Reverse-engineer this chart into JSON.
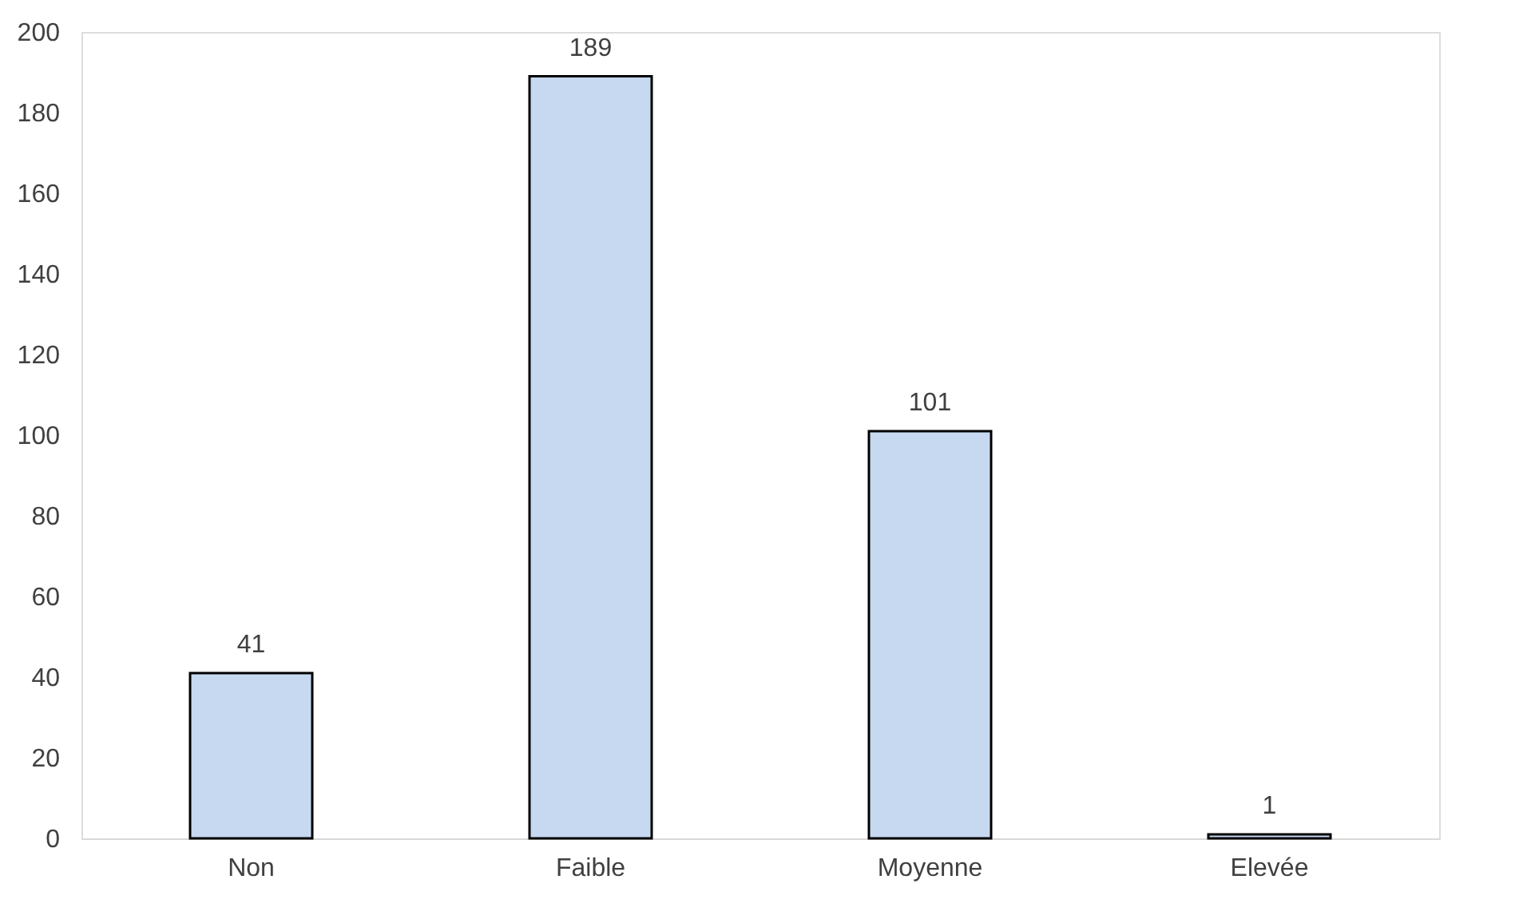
{
  "chart_data": {
    "type": "bar",
    "categories": [
      "Non",
      "Faible",
      "Moyenne",
      "Elevée"
    ],
    "values": [
      41,
      189,
      101,
      1
    ],
    "color": "#c6d9f0",
    "ylim": [
      0,
      200
    ],
    "yticks": [
      0,
      20,
      40,
      60,
      80,
      100,
      120,
      140,
      160,
      180,
      200
    ],
    "grid": false,
    "data_labels": true
  }
}
